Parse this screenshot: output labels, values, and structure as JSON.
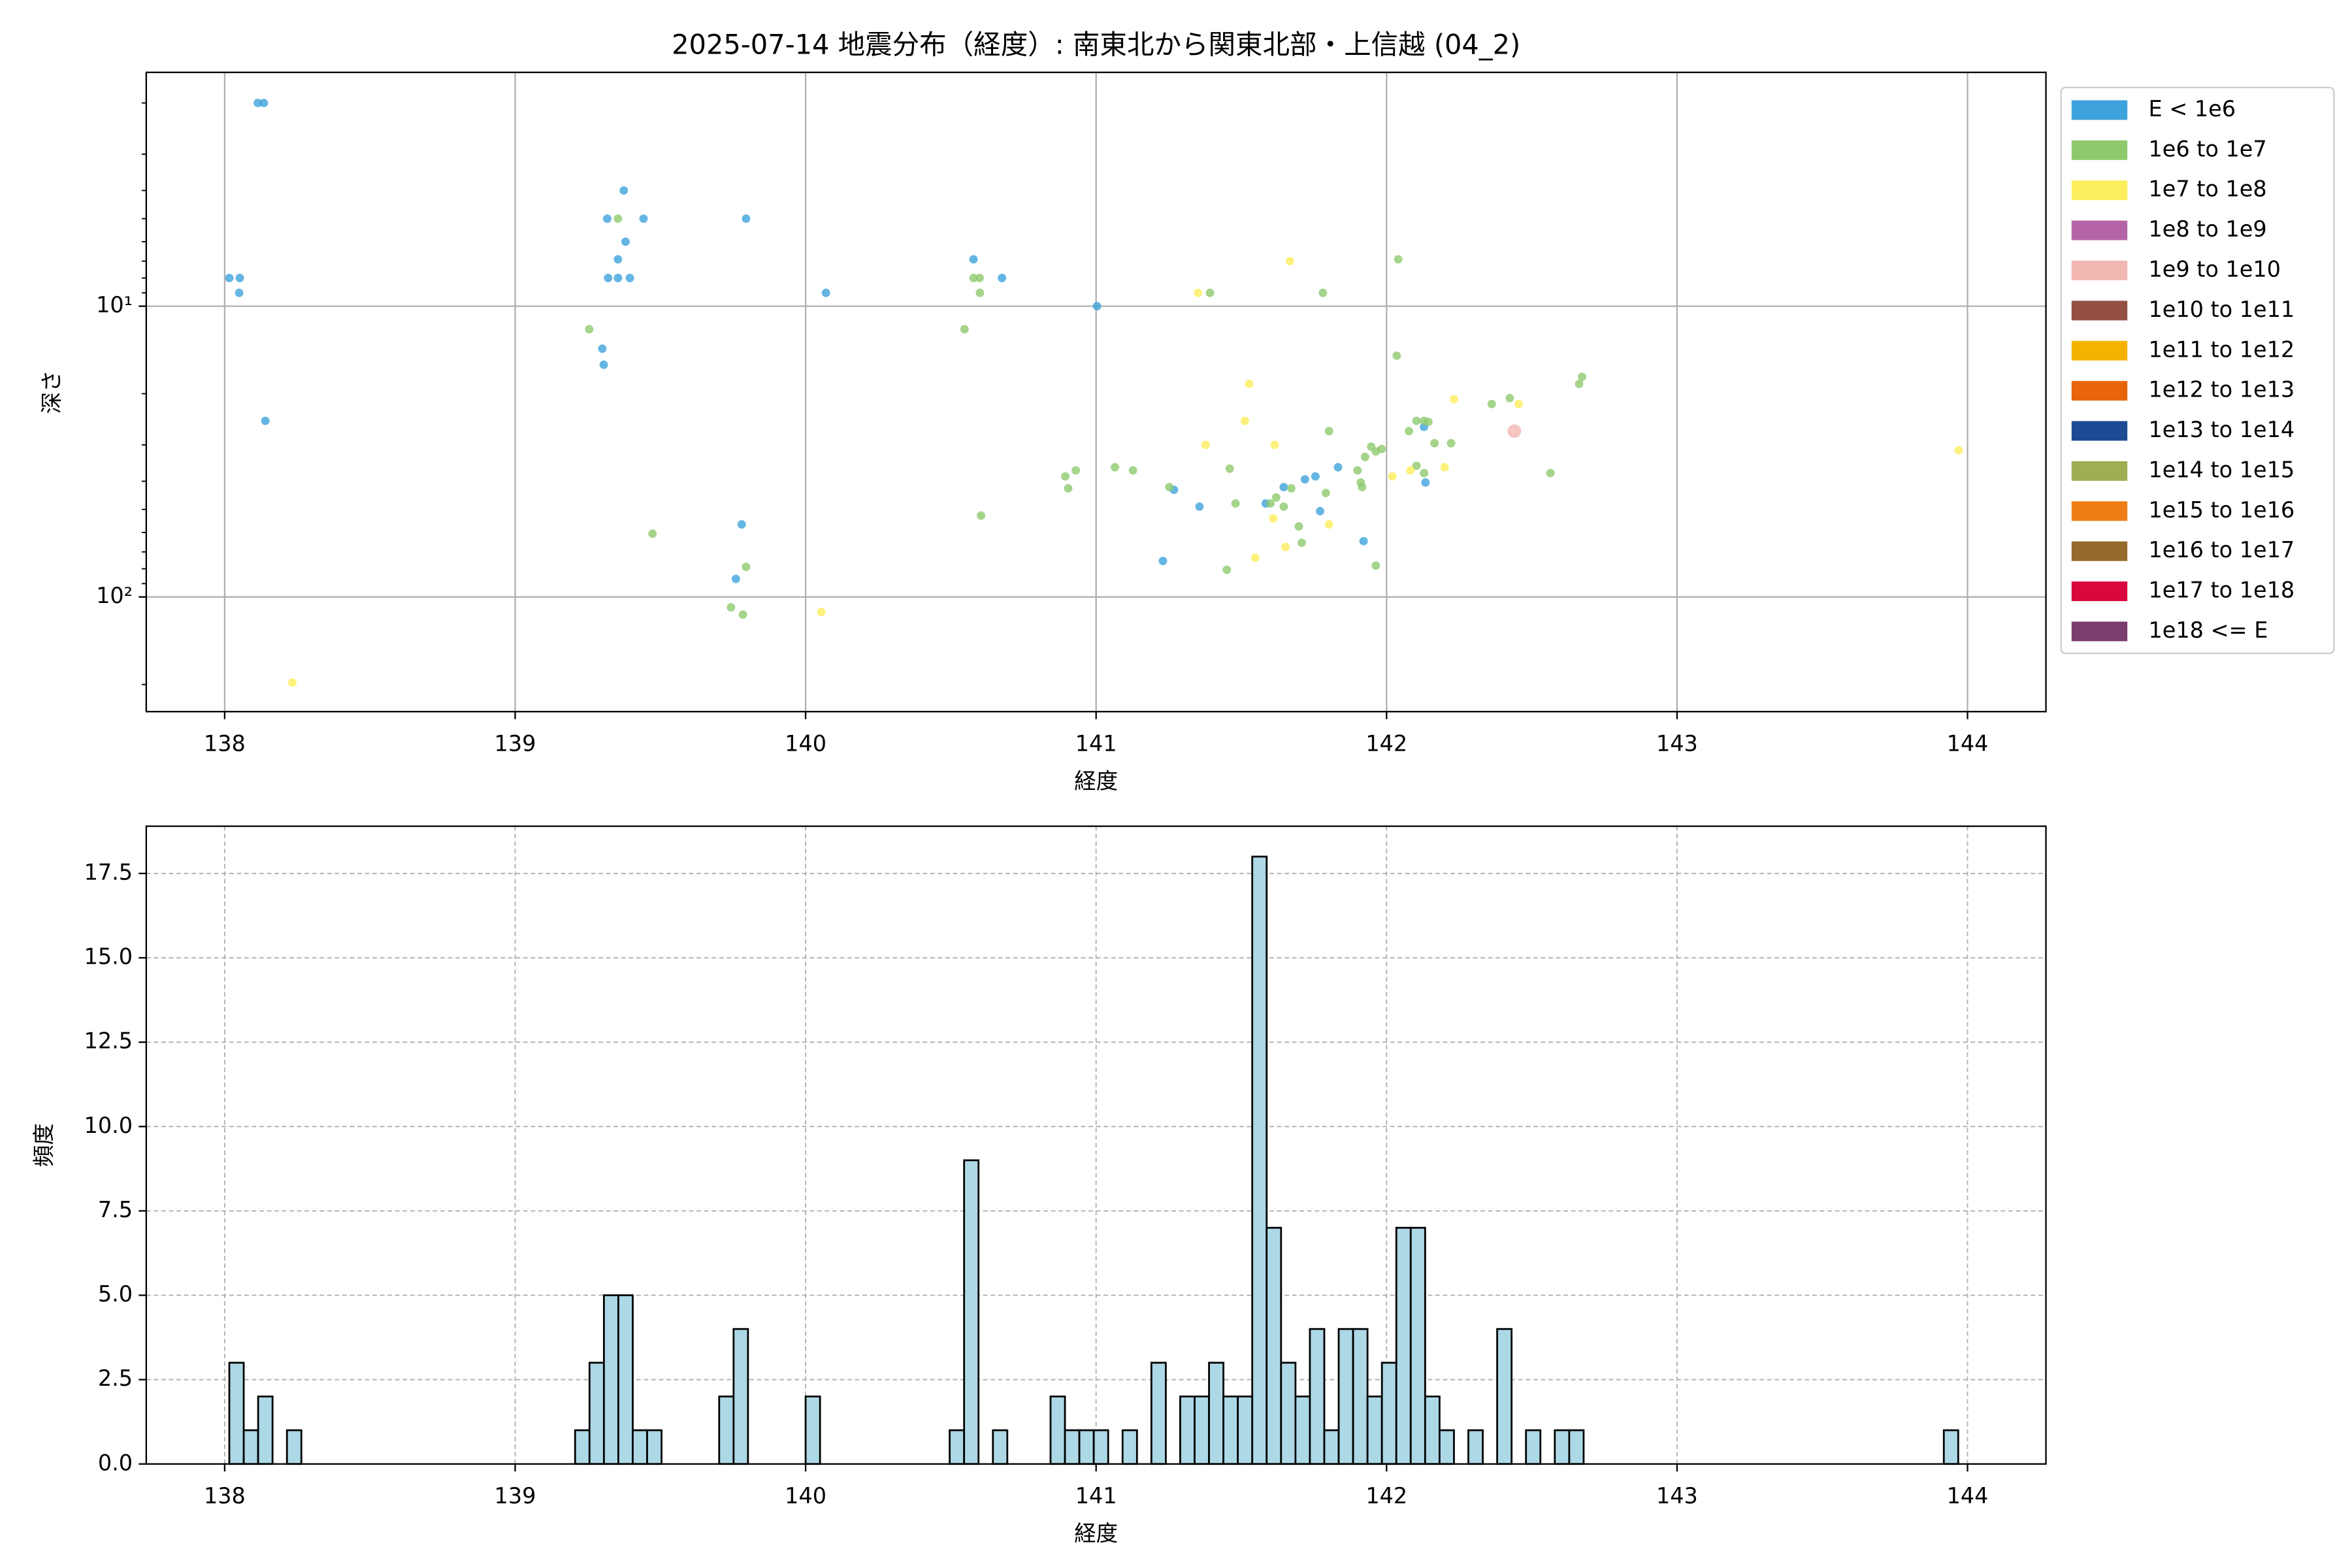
{
  "chart_data": [
    {
      "type": "scatter",
      "title": "2025-07-14 地震分布（経度）: 南東北から関東北部・上信越 (04_2)",
      "x_label": "経度",
      "y_label": "深さ",
      "xlim": [
        137.73,
        144.27
      ],
      "xticks": [
        138,
        139,
        140,
        141,
        142,
        143,
        144
      ],
      "ylim": [
        1.57,
        248
      ],
      "log_y": true,
      "invert_y": true,
      "yticks": [
        {
          "value": 10,
          "label": "10¹"
        },
        {
          "value": 100,
          "label": "10²"
        }
      ],
      "minor_yticks": [
        2,
        3,
        4,
        5,
        6,
        7,
        8,
        9,
        20,
        30,
        40,
        50,
        60,
        70,
        80,
        90,
        200
      ],
      "grid": true,
      "grid_style": "solid",
      "alpha": 0.8,
      "legend_loc": "outside right",
      "series": [
        {
          "name": "E < 1e6",
          "color": "#3ea2dc",
          "size": 2.8,
          "x": [
            138.114,
            138.135,
            138.016,
            138.052,
            138.05,
            138.14,
            139.374,
            139.317,
            139.442,
            139.38,
            139.354,
            139.32,
            139.354,
            139.395,
            139.3,
            139.305,
            139.795,
            139.78,
            139.76,
            140.07,
            140.578,
            140.676,
            141.003,
            141.268,
            141.356,
            141.23,
            141.584,
            141.646,
            141.719,
            141.833,
            141.755,
            141.771,
            141.921,
            142.129,
            142.134
          ],
          "y": [
            2.0,
            2.0,
            8.0,
            8.0,
            9.0,
            24.8,
            4.0,
            5.0,
            5.0,
            6.0,
            6.9,
            8.0,
            8.0,
            8.0,
            14.0,
            15.9,
            5.0,
            56.3,
            86.7,
            9.0,
            6.9,
            8.0,
            10.0,
            42.8,
            48.9,
            75.2,
            47.7,
            41.9,
            39.4,
            35.8,
            38.5,
            50.7,
            64.3,
            26.0,
            40.4
          ]
        },
        {
          "name": "1e6 to 1e7",
          "color": "#8fc96e",
          "size": 2.8,
          "x": [
            139.255,
            139.354,
            140.578,
            140.599,
            140.6,
            140.547,
            140.604,
            139.473,
            139.795,
            139.743,
            139.784,
            140.894,
            140.93,
            140.904,
            141.065,
            141.127,
            141.252,
            141.392,
            141.46,
            141.45,
            141.48,
            141.6,
            141.62,
            141.646,
            141.672,
            141.698,
            141.708,
            141.781,
            141.791,
            141.802,
            141.9,
            141.911,
            141.916,
            141.926,
            141.947,
            141.963,
            141.983,
            141.963,
            142.035,
            142.04,
            142.077,
            142.103,
            142.129,
            142.144,
            142.103,
            142.165,
            142.222,
            142.129,
            142.362,
            142.424,
            142.663,
            142.673,
            142.564
          ],
          "y": [
            12.0,
            5.0,
            8.0,
            8.0,
            9.0,
            12.0,
            52.5,
            60.6,
            78.8,
            108.6,
            115,
            38.5,
            36.7,
            42.3,
            35.8,
            36.7,
            41.9,
            9.0,
            36.2,
            80.7,
            47.7,
            47.7,
            45.5,
            48.9,
            42.3,
            57.2,
            65.1,
            9.0,
            43.9,
            26.9,
            36.7,
            40.4,
            41.9,
            33.0,
            30.4,
            31.6,
            31.0,
            78.0,
            14.8,
            6.9,
            26.9,
            24.8,
            24.8,
            25.0,
            35.4,
            29.6,
            29.6,
            37.5,
            21.7,
            20.7,
            18.5,
            17.5,
            37.5
          ]
        },
        {
          "name": "1e7 to 1e8",
          "color": "#fcee5c",
          "size": 2.8,
          "x": [
            138.233,
            140.054,
            141.351,
            141.667,
            141.527,
            141.512,
            141.377,
            141.615,
            141.548,
            141.61,
            141.652,
            141.802,
            142.02,
            142.082,
            142.2,
            142.232,
            142.455,
            143.97
          ],
          "y": [
            197,
            112.7,
            9.0,
            7.0,
            18.5,
            24.8,
            30.0,
            30.0,
            73.3,
            53.7,
            67.3,
            56.3,
            38.5,
            36.7,
            35.8,
            20.9,
            21.7,
            31.3
          ]
        },
        {
          "name": "1e8 to 1e9",
          "color": "#b565a7",
          "size": 3.5,
          "x": [],
          "y": []
        },
        {
          "name": "1e9 to 1e10",
          "color": "#f3b7b2",
          "size": 4.5,
          "x": [
            142.44
          ],
          "y": [
            26.9
          ]
        },
        {
          "name": "1e10 to 1e11",
          "color": "#955045",
          "size": 5,
          "x": [],
          "y": []
        },
        {
          "name": "1e11 to 1e12",
          "color": "#f5b300",
          "size": 5,
          "x": [],
          "y": []
        },
        {
          "name": "1e12 to 1e13",
          "color": "#e9650b",
          "size": 5,
          "x": [],
          "y": []
        },
        {
          "name": "1e13 to 1e14",
          "color": "#1c4a93",
          "size": 5,
          "x": [],
          "y": []
        },
        {
          "name": "1e14 to 1e15",
          "color": "#9dae53",
          "size": 5,
          "x": [],
          "y": []
        },
        {
          "name": "1e15 to 1e16",
          "color": "#ef7d16",
          "size": 5,
          "x": [],
          "y": []
        },
        {
          "name": "1e16 to 1e17",
          "color": "#946b2d",
          "size": 5,
          "x": [],
          "y": []
        },
        {
          "name": "1e17 to 1e18",
          "color": "#d9073e",
          "size": 5,
          "x": [],
          "y": []
        },
        {
          "name": "1e18 <= E",
          "color": "#7b3c6e",
          "size": 5,
          "x": [],
          "y": []
        }
      ]
    },
    {
      "type": "histogram",
      "x_label": "経度",
      "y_label": "頻度",
      "xlim": [
        137.73,
        144.27
      ],
      "xticks": [
        138,
        139,
        140,
        141,
        142,
        143,
        144
      ],
      "ylim": [
        0,
        18.9
      ],
      "yticks": [
        {
          "value": 0,
          "label": "0.0"
        },
        2.5,
        {
          "value": 5,
          "label": "5.0"
        },
        7.5,
        {
          "value": 10,
          "label": "10.0"
        },
        12.5,
        {
          "value": 15,
          "label": "15.0"
        },
        17.5
      ],
      "grid": true,
      "grid_style": "dashed",
      "color": "#add8e6",
      "edgecolor": "#000000",
      "bins": [
        138.016,
        138.0656,
        138.1152,
        138.1648,
        138.2144,
        138.264,
        138.3136,
        138.3632,
        138.4128,
        138.4624,
        138.512,
        138.5616,
        138.6112,
        138.6608,
        138.7104,
        138.76,
        138.8096,
        138.8592,
        138.9088,
        138.9584,
        139.008,
        139.0576,
        139.1072,
        139.1568,
        139.2064,
        139.256,
        139.3056,
        139.3552,
        139.4048,
        139.4544,
        139.504,
        139.5536,
        139.6032,
        139.6528,
        139.7024,
        139.752,
        139.8016,
        139.8512,
        139.9008,
        139.9504,
        140.0,
        140.0496,
        140.0992,
        140.1488,
        140.1984,
        140.248,
        140.2976,
        140.3472,
        140.3968,
        140.4464,
        140.496,
        140.5456,
        140.5952,
        140.6448,
        140.6944,
        140.744,
        140.7936,
        140.8432,
        140.8928,
        140.9424,
        140.992,
        141.0416,
        141.0912,
        141.1408,
        141.1904,
        141.24,
        141.2896,
        141.3392,
        141.3888,
        141.4384,
        141.488,
        141.5376,
        141.5872,
        141.6368,
        141.6864,
        141.736,
        141.7856,
        141.8352,
        141.8848,
        141.9344,
        141.984,
        142.0336,
        142.0832,
        142.1328,
        142.1824,
        142.232,
        142.2816,
        142.3312,
        142.3808,
        142.4304,
        142.48,
        142.5296,
        142.5792,
        142.6288,
        142.6784,
        142.728,
        142.7776,
        142.8272,
        142.8768,
        142.9264,
        142.976,
        143.0256,
        143.0752,
        143.1248,
        143.1744,
        143.224,
        143.2736,
        143.3232,
        143.3728,
        143.4224,
        143.472,
        143.5216,
        143.5712,
        143.6208,
        143.6704,
        143.72,
        143.7696,
        143.8192,
        143.8688,
        143.9184,
        143.968
      ],
      "values": [
        3,
        1,
        2,
        0,
        1,
        0,
        0,
        0,
        0,
        0,
        0,
        0,
        0,
        0,
        0,
        0,
        0,
        0,
        0,
        0,
        0,
        0,
        0,
        0,
        1,
        3,
        5,
        5,
        1,
        1,
        0,
        0,
        0,
        0,
        2,
        4,
        0,
        0,
        0,
        0,
        2,
        0,
        0,
        0,
        0,
        0,
        0,
        0,
        0,
        0,
        1,
        9,
        0,
        1,
        0,
        0,
        0,
        2,
        1,
        1,
        1,
        0,
        1,
        0,
        3,
        0,
        2,
        2,
        3,
        2,
        2,
        18,
        7,
        3,
        2,
        4,
        1,
        4,
        4,
        2,
        3,
        7,
        7,
        2,
        1,
        0,
        1,
        0,
        4,
        0,
        1,
        0,
        1,
        1,
        0,
        0,
        0,
        0,
        0,
        0,
        0,
        0,
        0,
        0,
        0,
        0,
        0,
        0,
        0,
        0,
        0,
        0,
        0,
        0,
        0,
        0,
        0,
        0,
        0,
        1
      ]
    }
  ]
}
